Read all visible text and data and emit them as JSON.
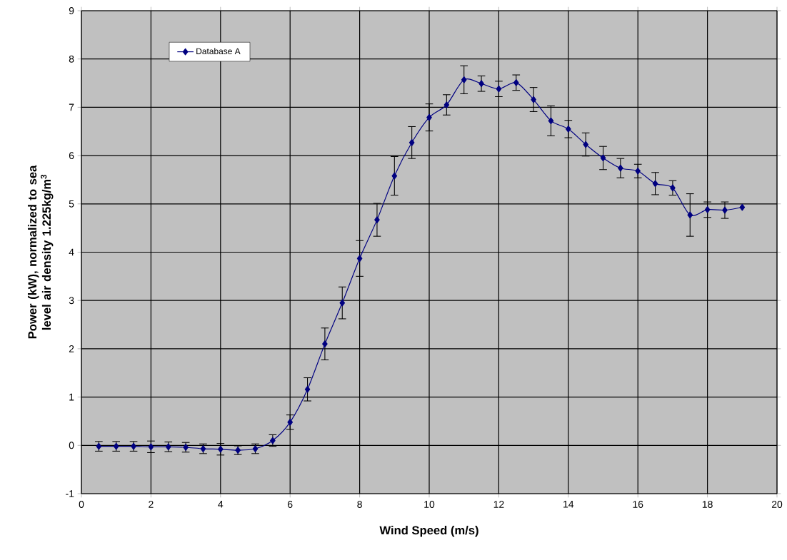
{
  "chart_data": {
    "type": "line",
    "xlabel": "Wind Speed (m/s)",
    "ylabel": "Power (kW), normalized to sea level air density 1.225kg/m$^{3}$",
    "x": [
      0.5,
      1,
      1.5,
      2,
      2.5,
      3,
      3.5,
      4,
      4.5,
      5,
      5.5,
      6,
      6.5,
      7,
      7.5,
      8,
      8.5,
      9,
      9.5,
      10,
      10.5,
      11,
      11.5,
      12,
      12.5,
      13,
      13.5,
      14,
      14.5,
      15,
      15.5,
      16,
      16.5,
      17,
      17.5,
      18,
      18.5,
      19
    ],
    "series": [
      {
        "name": "Database A",
        "color": "#000080",
        "values": [
          -0.02,
          -0.02,
          -0.02,
          -0.03,
          -0.03,
          -0.04,
          -0.07,
          -0.08,
          -0.1,
          -0.07,
          0.1,
          0.48,
          1.16,
          2.1,
          2.95,
          3.87,
          4.67,
          5.58,
          6.27,
          6.79,
          7.05,
          7.57,
          7.49,
          7.38,
          7.51,
          7.16,
          6.72,
          6.55,
          6.23,
          5.95,
          5.74,
          5.68,
          5.42,
          5.33,
          4.77,
          4.88,
          4.87,
          4.93
        ],
        "errors": [
          0.1,
          0.1,
          0.1,
          0.12,
          0.1,
          0.1,
          0.1,
          0.12,
          0.09,
          0.1,
          0.12,
          0.15,
          0.24,
          0.33,
          0.33,
          0.37,
          0.34,
          0.4,
          0.33,
          0.28,
          0.21,
          0.29,
          0.16,
          0.16,
          0.16,
          0.25,
          0.31,
          0.18,
          0.24,
          0.24,
          0.2,
          0.14,
          0.23,
          0.15,
          0.44,
          0.16,
          0.17,
          null
        ]
      }
    ],
    "xlim": [
      0,
      20
    ],
    "xticks": [
      0,
      2,
      4,
      6,
      8,
      10,
      12,
      14,
      16,
      18,
      20
    ],
    "ylim": [
      -1,
      9
    ],
    "yticks": [
      -1,
      0,
      1,
      2,
      3,
      4,
      5,
      6,
      7,
      8,
      9
    ],
    "grid": true,
    "legend": "top left",
    "marker": "diamond",
    "line_style": "solid"
  }
}
